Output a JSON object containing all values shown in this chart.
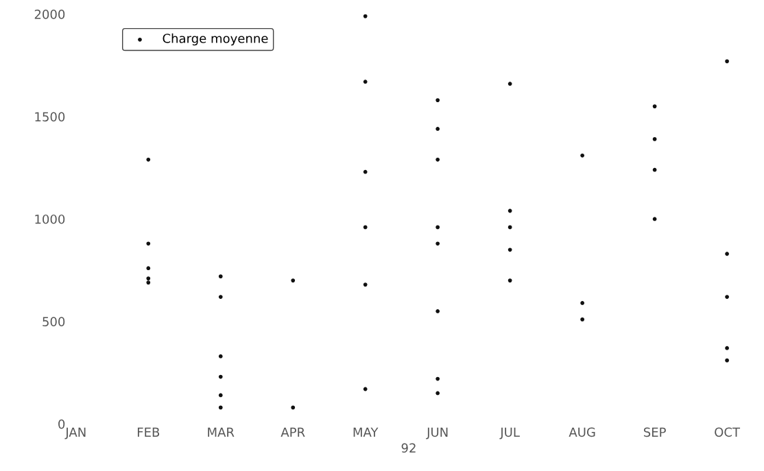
{
  "chart_data": {
    "type": "scatter",
    "xlabel": "92",
    "legend": "top left",
    "grid": false,
    "categories": [
      "JAN",
      "FEB",
      "MAR",
      "APR",
      "MAY",
      "JUN",
      "JUL",
      "AUG",
      "SEP",
      "OCT"
    ],
    "ylim": [
      0,
      2000
    ],
    "yticks": [
      0,
      500,
      1000,
      1500,
      2000
    ],
    "series": [
      {
        "name": "Charge moyenne",
        "color": "#111111",
        "x": [
          "FEB",
          "FEB",
          "FEB",
          "FEB",
          "FEB",
          "MAR",
          "MAR",
          "MAR",
          "MAR",
          "MAR",
          "MAR",
          "APR",
          "APR",
          "MAY",
          "MAY",
          "MAY",
          "MAY",
          "MAY",
          "MAY",
          "JUN",
          "JUN",
          "JUN",
          "JUN",
          "JUN",
          "JUN",
          "JUN",
          "JUN",
          "JUL",
          "JUL",
          "JUL",
          "JUL",
          "JUL",
          "AUG",
          "AUG",
          "AUG",
          "SEP",
          "SEP",
          "SEP",
          "SEP",
          "OCT",
          "OCT",
          "OCT",
          "OCT",
          "OCT"
        ],
        "values": [
          1290,
          880,
          760,
          710,
          690,
          720,
          620,
          330,
          230,
          140,
          80,
          700,
          80,
          1990,
          1670,
          1230,
          960,
          680,
          170,
          1580,
          1440,
          1290,
          960,
          880,
          550,
          220,
          150,
          1660,
          1040,
          960,
          850,
          700,
          1310,
          590,
          510,
          1550,
          1390,
          1240,
          1000,
          1770,
          830,
          620,
          370,
          310
        ]
      }
    ]
  }
}
